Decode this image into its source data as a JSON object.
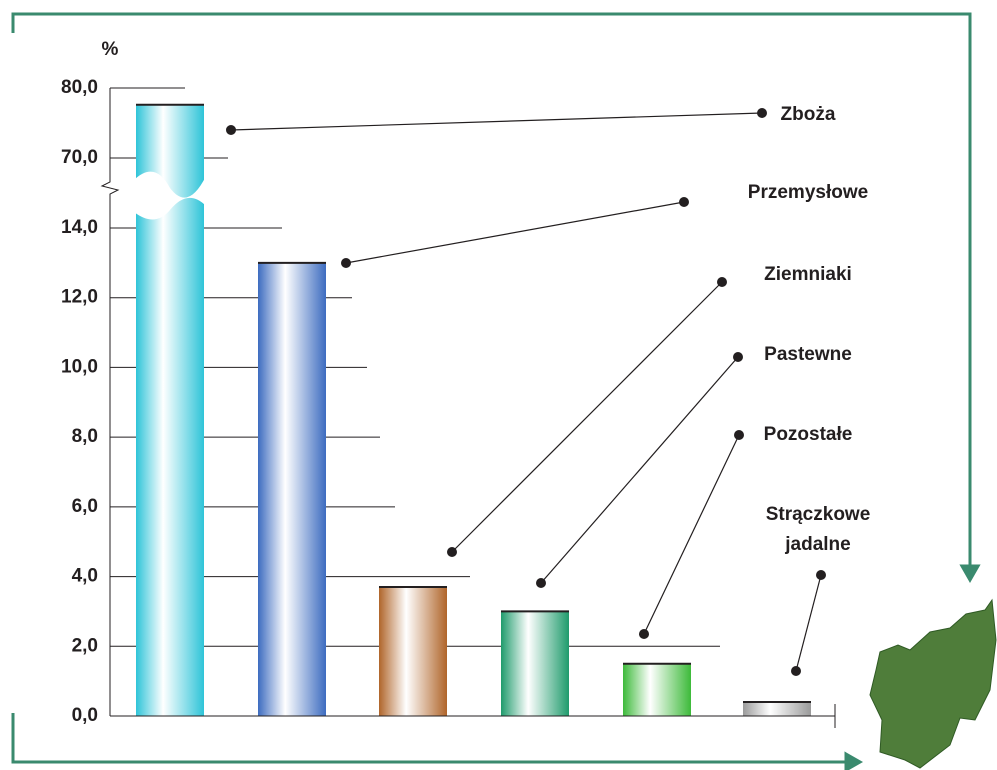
{
  "chart_data": {
    "type": "bar",
    "y_label": "%",
    "categories": [
      "Zboża",
      "Przemysłowe",
      "Ziemniaki",
      "Pastewne",
      "Pozostałe",
      "Strączkowe jadalne"
    ],
    "values": [
      77.6,
      13.0,
      3.7,
      3.0,
      1.5,
      0.4
    ],
    "colors": [
      "#2ec4d8",
      "#3d6cc0",
      "#b0652a",
      "#1f9b6c",
      "#3dba3a",
      "#9a9a9a"
    ],
    "ylim": [
      0,
      80
    ],
    "y_break": [
      14,
      70
    ],
    "yticks": [
      {
        "value": 0,
        "label": "0,0"
      },
      {
        "value": 2,
        "label": "2,0"
      },
      {
        "value": 4,
        "label": "4,0"
      },
      {
        "value": 6,
        "label": "6,0"
      },
      {
        "value": 8,
        "label": "8,0"
      },
      {
        "value": 10,
        "label": "10,0"
      },
      {
        "value": 12,
        "label": "12,0"
      },
      {
        "value": 14,
        "label": "14,0"
      },
      {
        "value": 70,
        "label": "70,0"
      },
      {
        "value": 80,
        "label": "80,0"
      }
    ],
    "grid": true
  }
}
